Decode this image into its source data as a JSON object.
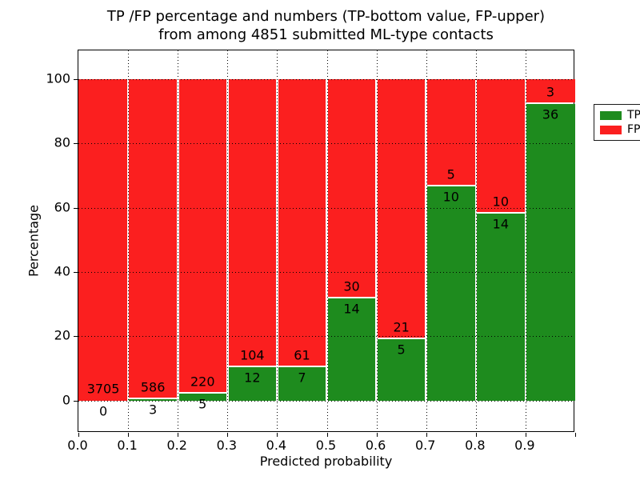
{
  "figure": {
    "title_line1": "TP /FP percentage and numbers (TP-bottom value, FP-upper)",
    "title_line2": "from among 4851 submitted ML-type contacts",
    "xlabel": "Predicted probability",
    "ylabel": "Percentage"
  },
  "legend": {
    "entries": [
      {
        "label": "TP",
        "color": "#1e8b1e"
      },
      {
        "label": "FP",
        "color": "#fb1f1f"
      }
    ]
  },
  "chart_data": {
    "type": "bar",
    "stacked": true,
    "normalized": "percent_of_bin",
    "title": "TP /FP percentage and numbers (TP-bottom value, FP-upper) from among 4851 submitted ML-type contacts",
    "xlabel": "Predicted probability",
    "ylabel": "Percentage",
    "xlim": [
      0.0,
      1.0
    ],
    "ylim": [
      -10,
      109
    ],
    "grid": "dotted-black",
    "legend_position": "upper right",
    "bin_edges": [
      0.0,
      0.1,
      0.2,
      0.3,
      0.4,
      0.5,
      0.6,
      0.7,
      0.8,
      0.9,
      1.0
    ],
    "xtick_labels": [
      "0.0",
      "0.1",
      "0.2",
      "0.3",
      "0.4",
      "0.5",
      "0.6",
      "0.7",
      "0.8",
      "0.9"
    ],
    "ytick_values": [
      0,
      20,
      40,
      60,
      80,
      100
    ],
    "ytick_labels": [
      "0",
      "20",
      "40",
      "60",
      "80",
      "100"
    ],
    "series": [
      {
        "name": "TP",
        "color": "#1e8b1e",
        "counts": [
          0,
          3,
          5,
          12,
          7,
          14,
          5,
          10,
          14,
          36
        ]
      },
      {
        "name": "FP",
        "color": "#fb1f1f",
        "counts": [
          3705,
          586,
          220,
          104,
          61,
          30,
          21,
          5,
          10,
          3
        ]
      }
    ],
    "tp_percent_per_bin": [
      0.0,
      0.51,
      2.22,
      10.34,
      10.29,
      31.82,
      19.23,
      66.67,
      58.33,
      92.31
    ],
    "total_contacts": 4851
  }
}
